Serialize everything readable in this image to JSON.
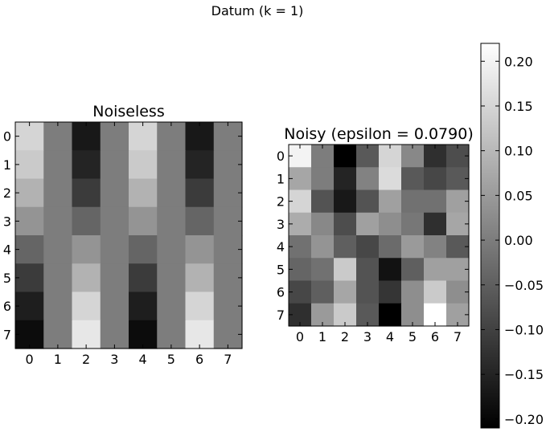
{
  "suptitle": "Datum (k = 1)",
  "chart_data": [
    {
      "type": "heatmap",
      "title": "Noiseless",
      "x_ticks": [
        "0",
        "1",
        "2",
        "3",
        "4",
        "5",
        "6",
        "7"
      ],
      "y_ticks": [
        "0",
        "1",
        "2",
        "3",
        "4",
        "5",
        "6",
        "7"
      ],
      "colormap": "gray",
      "vmin": -0.21,
      "vmax": 0.22,
      "values": [
        [
          0.15,
          0.0,
          -0.17,
          0.0,
          0.15,
          0.0,
          -0.17,
          0.0
        ],
        [
          0.13,
          0.0,
          -0.15,
          0.0,
          0.13,
          0.0,
          -0.15,
          0.0
        ],
        [
          0.09,
          0.0,
          -0.11,
          0.0,
          0.09,
          0.0,
          -0.11,
          0.0
        ],
        [
          0.04,
          0.0,
          -0.04,
          0.0,
          0.04,
          0.0,
          -0.04,
          0.0
        ],
        [
          -0.04,
          0.0,
          0.04,
          0.0,
          -0.04,
          0.0,
          0.04,
          0.0
        ],
        [
          -0.11,
          0.0,
          0.09,
          0.0,
          -0.11,
          0.0,
          0.09,
          0.0
        ],
        [
          -0.16,
          0.0,
          0.15,
          0.0,
          -0.16,
          0.0,
          0.15,
          0.0
        ],
        [
          -0.19,
          0.0,
          0.18,
          0.0,
          -0.19,
          0.0,
          0.18,
          0.0
        ]
      ]
    },
    {
      "type": "heatmap",
      "title": "Noisy (epsilon = 0.0790)",
      "x_ticks": [
        "0",
        "1",
        "2",
        "3",
        "4",
        "5",
        "6",
        "7"
      ],
      "y_ticks": [
        "0",
        "1",
        "2",
        "3",
        "4",
        "5",
        "6",
        "7"
      ],
      "colormap": "gray",
      "vmin": -0.21,
      "vmax": 0.22,
      "values": [
        [
          0.2,
          0.0,
          -0.21,
          -0.06,
          0.15,
          0.02,
          -0.13,
          -0.08
        ],
        [
          0.07,
          0.0,
          -0.15,
          0.01,
          0.16,
          -0.06,
          -0.09,
          -0.06
        ],
        [
          0.15,
          -0.07,
          -0.17,
          -0.07,
          0.06,
          -0.02,
          -0.02,
          0.06
        ],
        [
          0.08,
          0.02,
          -0.08,
          0.06,
          0.03,
          -0.01,
          -0.13,
          0.07
        ],
        [
          -0.02,
          0.04,
          -0.05,
          -0.09,
          -0.03,
          0.05,
          0.01,
          -0.06
        ],
        [
          -0.04,
          -0.02,
          0.13,
          -0.07,
          -0.18,
          -0.05,
          0.06,
          0.06
        ],
        [
          -0.09,
          -0.05,
          0.07,
          -0.07,
          -0.12,
          0.03,
          0.13,
          0.03
        ],
        [
          -0.13,
          0.05,
          0.13,
          -0.06,
          -0.21,
          0.03,
          0.22,
          0.06
        ]
      ]
    }
  ],
  "colorbar": {
    "ticks": [
      "0.20",
      "0.15",
      "0.10",
      "0.05",
      "0.00",
      "−0.05",
      "−0.10",
      "−0.15",
      "−0.20"
    ],
    "tick_values": [
      0.2,
      0.15,
      0.1,
      0.05,
      0.0,
      -0.05,
      -0.1,
      -0.15,
      -0.2
    ]
  }
}
